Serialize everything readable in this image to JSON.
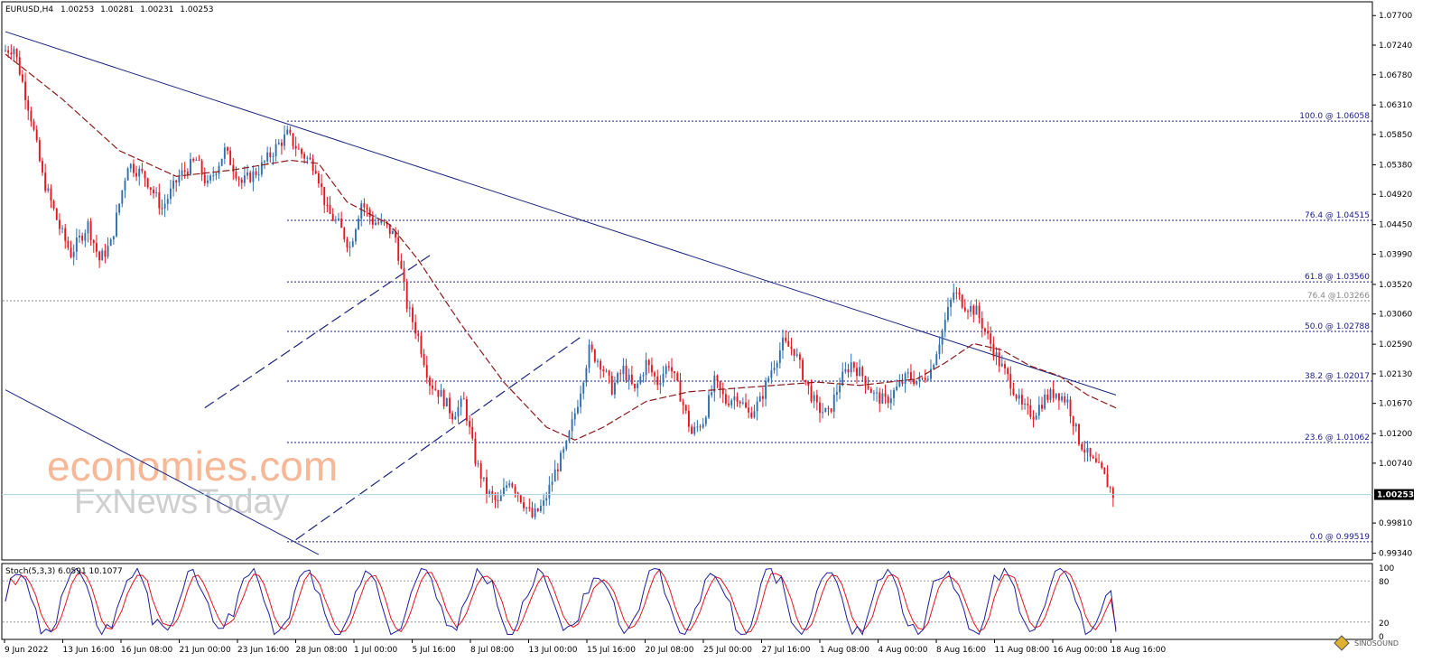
{
  "header": {
    "symbol": "EURUSD,H4",
    "open": "1.00253",
    "high": "1.00281",
    "low": "1.00231",
    "close": "1.00253"
  },
  "watermark": {
    "line1": "economies.com",
    "line2": "FxNewsToday",
    "logo": "SINOSOUND"
  },
  "current_price": "1.00253",
  "colors": {
    "up": "#2f6fb0",
    "down": "#e8141e",
    "ma": "#8b1a1a",
    "trend": "#1a237e",
    "fib": "#1a1a8c",
    "stoch_main": "#1f1f9c",
    "stoch_signal": "#e8141e",
    "current_line": "#a8d4e0"
  },
  "chart_data": {
    "type": "candlestick",
    "symbol": "EURUSD",
    "timeframe": "H4",
    "y_ticks": [
      "1.07700",
      "1.07240",
      "1.06780",
      "1.06310",
      "1.05850",
      "1.05380",
      "1.04920",
      "1.04450",
      "1.03990",
      "1.03520",
      "1.03060",
      "1.02590",
      "1.02130",
      "1.01670",
      "1.01200",
      "1.00740",
      "0.99810",
      "0.99340"
    ],
    "ylim": [
      0.9925,
      1.079
    ],
    "x_ticks": [
      "9 Jun 2022",
      "13 Jun 16:00",
      "16 Jun 08:00",
      "21 Jun 00:00",
      "23 Jun 16:00",
      "28 Jun 08:00",
      "1 Jul 00:00",
      "5 Jul 16:00",
      "8 Jul 08:00",
      "13 Jul 00:00",
      "15 Jul 16:00",
      "20 Jul 08:00",
      "25 Jul 00:00",
      "27 Jul 16:00",
      "1 Aug 08:00",
      "4 Aug 00:00",
      "8 Aug 16:00",
      "11 Aug 08:00",
      "16 Aug 00:00",
      "18 Aug 16:00"
    ],
    "fibonacci": [
      {
        "label": "100.0 @ 1.06058",
        "level": 1.06058
      },
      {
        "label": "76.4 @ 1.04515",
        "level": 1.04515
      },
      {
        "label": "61.8 @ 1.03560",
        "level": 1.0356
      },
      {
        "label": "50.0 @ 1.02788",
        "level": 1.02788
      },
      {
        "label": "38.2 @ 1.02017",
        "level": 1.02017
      },
      {
        "label": "23.6 @ 1.01062",
        "level": 1.01062
      },
      {
        "label": "0.0 @ 0.99519",
        "level": 0.99519
      }
    ],
    "secondary_level": {
      "label": "76.4 @1.03266",
      "level": 1.03266
    },
    "price_path": [
      [
        0,
        1.0715
      ],
      [
        4,
        1.072
      ],
      [
        10,
        1.0612
      ],
      [
        14,
        1.052
      ],
      [
        20,
        1.044
      ],
      [
        24,
        1.04
      ],
      [
        30,
        1.0445
      ],
      [
        34,
        1.039
      ],
      [
        38,
        1.0415
      ],
      [
        44,
        1.054
      ],
      [
        50,
        1.052
      ],
      [
        56,
        1.047
      ],
      [
        62,
        1.052
      ],
      [
        68,
        1.0545
      ],
      [
        72,
        1.0505
      ],
      [
        78,
        1.056
      ],
      [
        84,
        1.051
      ],
      [
        90,
        1.053
      ],
      [
        96,
        1.0565
      ],
      [
        100,
        1.0585
      ],
      [
        104,
        1.056
      ],
      [
        110,
        1.0535
      ],
      [
        114,
        1.0465
      ],
      [
        118,
        1.0445
      ],
      [
        122,
        1.041
      ],
      [
        126,
        1.048
      ],
      [
        130,
        1.045
      ],
      [
        134,
        1.0445
      ],
      [
        138,
        1.0425
      ],
      [
        142,
        1.032
      ],
      [
        146,
        1.027
      ],
      [
        150,
        1.02
      ],
      [
        154,
        1.018
      ],
      [
        158,
        1.015
      ],
      [
        162,
        1.017
      ],
      [
        166,
        1.008
      ],
      [
        170,
        1.003
      ],
      [
        174,
        1.001
      ],
      [
        178,
        1.005
      ],
      [
        182,
        1.002
      ],
      [
        186,
        0.999
      ],
      [
        190,
        1.001
      ],
      [
        194,
        1.006
      ],
      [
        198,
        1.01
      ],
      [
        202,
        1.017
      ],
      [
        206,
        1.025
      ],
      [
        210,
        1.023
      ],
      [
        214,
        1.019
      ],
      [
        218,
        1.022
      ],
      [
        222,
        1.0185
      ],
      [
        226,
        1.023
      ],
      [
        230,
        1.02
      ],
      [
        234,
        1.023
      ],
      [
        238,
        1.018
      ],
      [
        242,
        1.012
      ],
      [
        246,
        1.014
      ],
      [
        250,
        1.02
      ],
      [
        254,
        1.017
      ],
      [
        258,
        1.018
      ],
      [
        262,
        1.015
      ],
      [
        266,
        1.017
      ],
      [
        270,
        1.022
      ],
      [
        274,
        1.026
      ],
      [
        278,
        1.025
      ],
      [
        282,
        1.02
      ],
      [
        286,
        1.016
      ],
      [
        290,
        1.015
      ],
      [
        294,
        1.02
      ],
      [
        298,
        1.023
      ],
      [
        302,
        1.021
      ],
      [
        306,
        1.018
      ],
      [
        310,
        1.017
      ],
      [
        314,
        1.019
      ],
      [
        318,
        1.021
      ],
      [
        322,
        1.02
      ],
      [
        326,
        1.022
      ],
      [
        330,
        1.028
      ],
      [
        334,
        1.034
      ],
      [
        338,
        1.032
      ],
      [
        342,
        1.031
      ],
      [
        346,
        1.027
      ],
      [
        350,
        1.023
      ],
      [
        354,
        1.02
      ],
      [
        358,
        1.016
      ],
      [
        362,
        1.015
      ],
      [
        366,
        1.0175
      ],
      [
        370,
        1.0185
      ],
      [
        374,
        1.017
      ],
      [
        378,
        1.011
      ],
      [
        382,
        1.008
      ],
      [
        386,
        1.006
      ],
      [
        390,
        1.0025
      ]
    ],
    "n_bars": 390,
    "moving_average": {
      "type": "SMA",
      "path": [
        [
          0,
          1.071
        ],
        [
          20,
          1.064
        ],
        [
          40,
          1.056
        ],
        [
          60,
          1.052
        ],
        [
          80,
          1.053
        ],
        [
          100,
          1.0545
        ],
        [
          110,
          1.054
        ],
        [
          120,
          1.048
        ],
        [
          135,
          1.0445
        ],
        [
          145,
          1.039
        ],
        [
          160,
          1.029
        ],
        [
          175,
          1.02
        ],
        [
          190,
          1.013
        ],
        [
          200,
          1.011
        ],
        [
          210,
          1.013
        ],
        [
          225,
          1.017
        ],
        [
          240,
          1.0185
        ],
        [
          255,
          1.019
        ],
        [
          270,
          1.0195
        ],
        [
          285,
          1.02
        ],
        [
          300,
          1.0195
        ],
        [
          310,
          1.02
        ],
        [
          320,
          1.0205
        ],
        [
          330,
          1.023
        ],
        [
          340,
          1.026
        ],
        [
          350,
          1.025
        ],
        [
          360,
          1.0225
        ],
        [
          370,
          1.021
        ],
        [
          380,
          1.018
        ],
        [
          390,
          1.016
        ]
      ]
    },
    "trendlines": [
      {
        "style": "solid",
        "from": [
          0,
          1.0745
        ],
        "to": [
          390,
          1.018
        ]
      },
      {
        "style": "solid",
        "from": [
          0,
          1.0188
        ],
        "to": [
          110,
          0.9932
        ]
      },
      {
        "style": "dashed",
        "from": [
          70,
          1.016
        ],
        "to": [
          150,
          1.04
        ]
      },
      {
        "style": "dashed",
        "from": [
          102,
          0.9955
        ],
        "to": [
          202,
          1.027
        ]
      }
    ],
    "stochastic": {
      "label": "Stoch(5,3,3) 6.0591 10.1077",
      "k": 6.0591,
      "d": 10.1077,
      "levels": [
        20,
        80
      ],
      "y_ticks": [
        "100",
        "80",
        "20",
        "0"
      ],
      "ylim": [
        0,
        100
      ]
    }
  }
}
